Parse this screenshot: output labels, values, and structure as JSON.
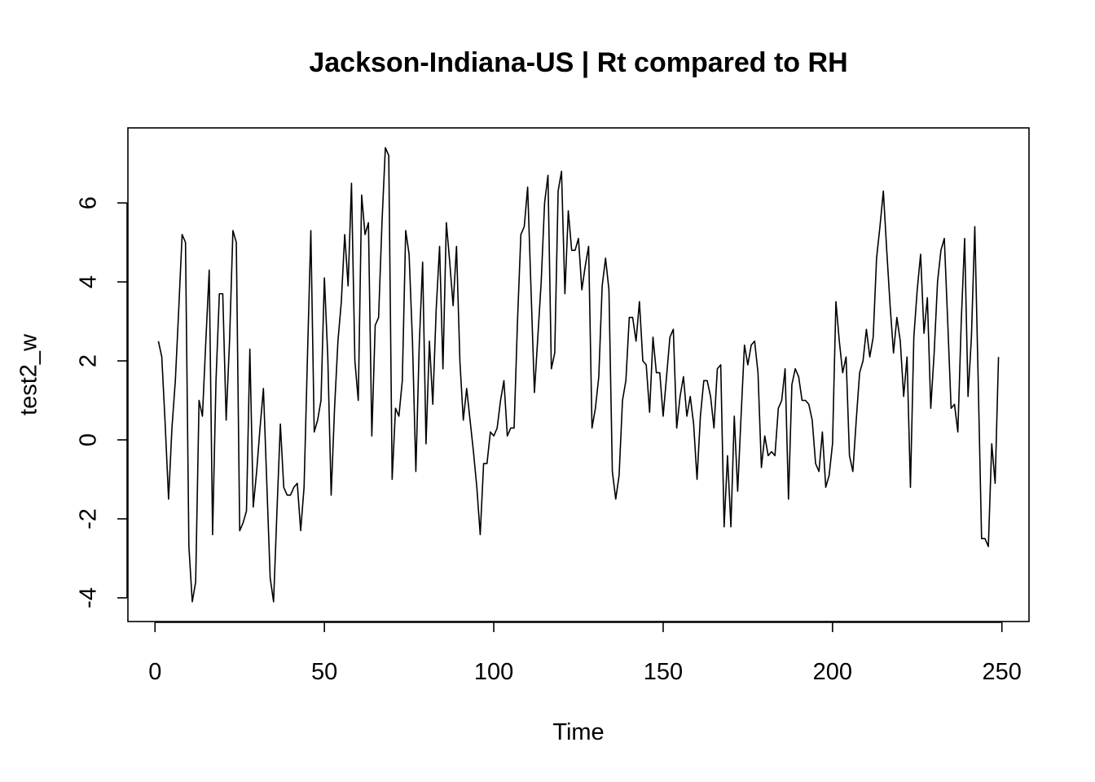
{
  "chart_data": {
    "type": "line",
    "title": "Jackson-Indiana-US | Rt compared to RH",
    "xlabel": "Time",
    "ylabel": "test2_w",
    "xlim": [
      -8,
      258
    ],
    "ylim": [
      -4.6,
      7.9
    ],
    "x_ticks": [
      0,
      50,
      100,
      150,
      200,
      250
    ],
    "y_ticks": [
      -4,
      -2,
      0,
      2,
      4,
      6
    ],
    "grid": false,
    "legend": "none",
    "series": [
      {
        "name": "test2_w",
        "color": "#000000",
        "x_start": 1,
        "values": [
          2.5,
          2.1,
          0.4,
          -1.5,
          0.3,
          1.5,
          3.3,
          5.2,
          5.0,
          -2.7,
          -4.1,
          -3.6,
          1.0,
          0.6,
          2.5,
          4.3,
          -2.4,
          1.5,
          3.7,
          3.7,
          0.5,
          2.5,
          5.3,
          5.0,
          -2.3,
          -2.1,
          -1.8,
          2.3,
          -1.7,
          -0.8,
          0.3,
          1.3,
          -1.1,
          -3.5,
          -4.1,
          -1.8,
          0.4,
          -1.2,
          -1.4,
          -1.4,
          -1.2,
          -1.1,
          -2.3,
          -1.2,
          2.1,
          5.3,
          0.2,
          0.5,
          1.0,
          4.1,
          2.1,
          -1.4,
          0.8,
          2.5,
          3.5,
          5.2,
          3.9,
          6.5,
          2.0,
          1.0,
          6.2,
          5.2,
          5.5,
          0.1,
          2.9,
          3.1,
          5.5,
          7.4,
          7.2,
          -1.0,
          0.8,
          0.6,
          1.5,
          5.3,
          4.7,
          2.5,
          -0.8,
          2.4,
          4.5,
          -0.1,
          2.5,
          0.9,
          3.3,
          4.9,
          1.8,
          5.5,
          4.5,
          3.4,
          4.9,
          2.0,
          0.5,
          1.3,
          0.5,
          -0.3,
          -1.2,
          -2.4,
          -0.6,
          -0.6,
          0.2,
          0.1,
          0.3,
          1.0,
          1.5,
          0.1,
          0.3,
          0.3,
          3.0,
          5.2,
          5.4,
          6.4,
          3.8,
          1.2,
          2.6,
          4.0,
          6.0,
          6.7,
          1.8,
          2.2,
          6.3,
          6.8,
          3.7,
          5.8,
          4.8,
          4.8,
          5.1,
          3.8,
          4.4,
          4.9,
          0.3,
          0.8,
          1.6,
          3.9,
          4.6,
          3.8,
          -0.8,
          -1.5,
          -0.9,
          1.0,
          1.5,
          3.1,
          3.1,
          2.5,
          3.5,
          2.0,
          1.9,
          0.7,
          2.6,
          1.7,
          1.7,
          0.6,
          1.6,
          2.6,
          2.8,
          0.3,
          1.1,
          1.6,
          0.6,
          1.1,
          0.4,
          -1.0,
          0.6,
          1.5,
          1.5,
          1.1,
          0.3,
          1.8,
          1.9,
          -2.2,
          -0.4,
          -2.2,
          0.6,
          -1.3,
          0.6,
          2.4,
          1.9,
          2.4,
          2.5,
          1.7,
          -0.7,
          0.1,
          -0.4,
          -0.3,
          -0.4,
          0.8,
          1.0,
          1.8,
          -1.5,
          1.4,
          1.8,
          1.6,
          1.0,
          1.0,
          0.9,
          0.5,
          -0.6,
          -0.8,
          0.2,
          -1.2,
          -0.9,
          -0.1,
          3.5,
          2.5,
          1.7,
          2.1,
          -0.4,
          -0.8,
          0.5,
          1.7,
          2.0,
          2.8,
          2.1,
          2.6,
          4.6,
          5.4,
          6.3,
          4.8,
          3.4,
          2.2,
          3.1,
          2.5,
          1.1,
          2.1,
          -1.2,
          2.6,
          3.8,
          4.7,
          2.7,
          3.6,
          0.8,
          2.2,
          4.0,
          4.8,
          5.1,
          3.0,
          0.8,
          0.9,
          0.2,
          3.0,
          5.1,
          1.1,
          2.6,
          5.4,
          1.5,
          -2.5,
          -2.5,
          -2.7,
          -0.1,
          -1.1,
          2.1
        ]
      }
    ]
  }
}
